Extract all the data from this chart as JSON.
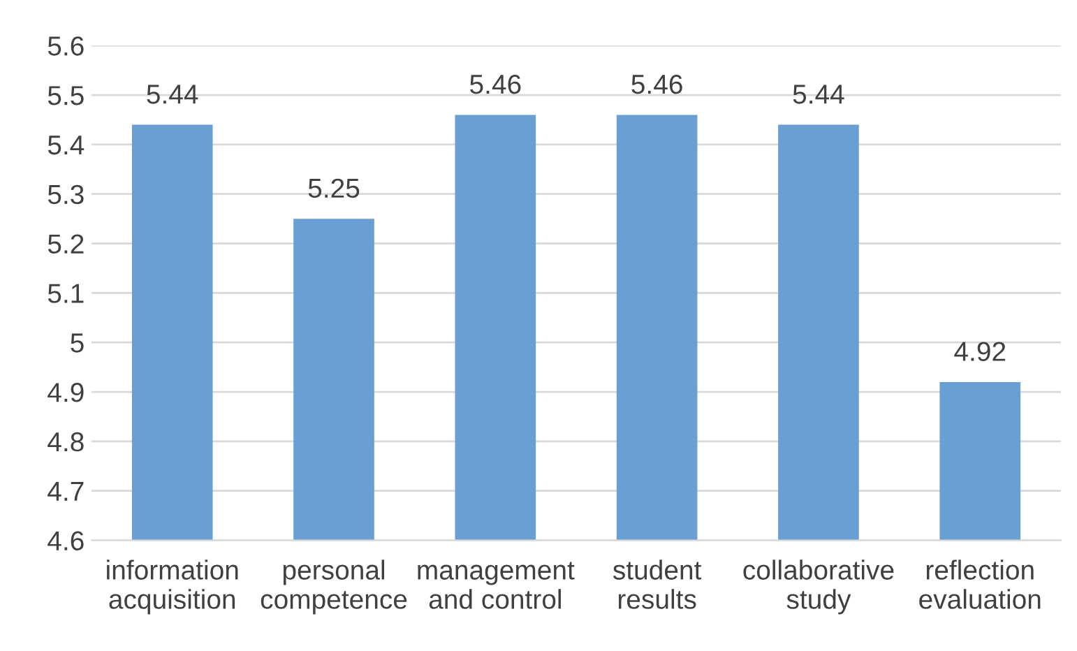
{
  "chart_data": {
    "type": "bar",
    "categories": [
      "information\nacquisition",
      "personal\ncompetence",
      "management\nand control",
      "student\nresults",
      "collaborative\nstudy",
      "reflection\nevaluation"
    ],
    "values": [
      5.44,
      5.25,
      5.46,
      5.46,
      5.44,
      4.92
    ],
    "color": "#6a9fd4",
    "ylim": [
      4.6,
      5.6
    ],
    "yticks": [
      4.6,
      4.7,
      4.8,
      4.9,
      5,
      5.1,
      5.2,
      5.3,
      5.4,
      5.5,
      5.6
    ],
    "grid": "y",
    "data_labels": true
  }
}
